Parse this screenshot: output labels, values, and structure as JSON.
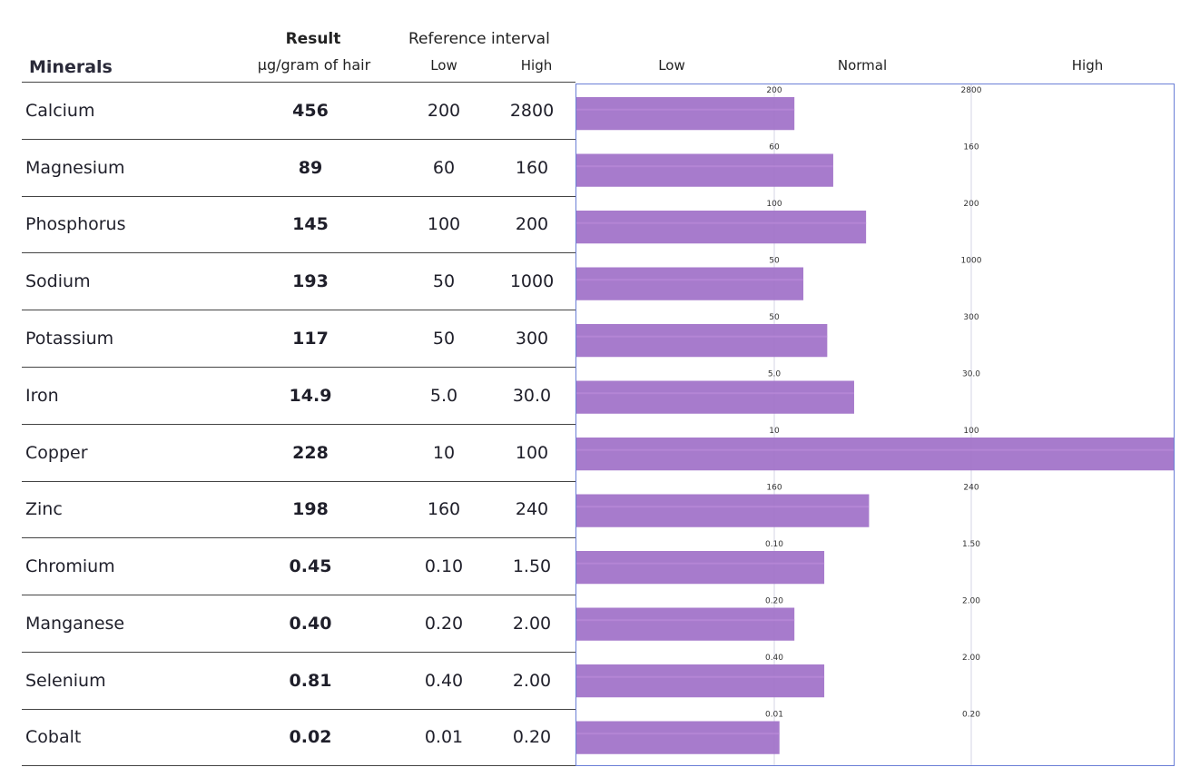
{
  "header": {
    "minerals": "Minerals",
    "result": "Result",
    "unit": "µg/gram of hair",
    "reference_interval": "Reference interval",
    "low": "Low",
    "high": "High",
    "zone_low": "Low",
    "zone_normal": "Normal",
    "zone_high": "High"
  },
  "rows": [
    {
      "mineral": "Calcium",
      "result": "456",
      "low": "200",
      "high": "2800"
    },
    {
      "mineral": "Magnesium",
      "result": "89",
      "low": "60",
      "high": "160"
    },
    {
      "mineral": "Phosphorus",
      "result": "145",
      "low": "100",
      "high": "200"
    },
    {
      "mineral": "Sodium",
      "result": "193",
      "low": "50",
      "high": "1000"
    },
    {
      "mineral": "Potassium",
      "result": "117",
      "low": "50",
      "high": "300"
    },
    {
      "mineral": "Iron",
      "result": "14.9",
      "low": "5.0",
      "high": "30.0"
    },
    {
      "mineral": "Copper",
      "result": "228",
      "low": "10",
      "high": "100"
    },
    {
      "mineral": "Zinc",
      "result": "198",
      "low": "160",
      "high": "240"
    },
    {
      "mineral": "Chromium",
      "result": "0.45",
      "low": "0.10",
      "high": "1.50"
    },
    {
      "mineral": "Manganese",
      "result": "0.40",
      "low": "0.20",
      "high": "2.00"
    },
    {
      "mineral": "Selenium",
      "result": "0.81",
      "low": "0.40",
      "high": "2.00"
    },
    {
      "mineral": "Cobalt",
      "result": "0.02",
      "low": "0.01",
      "high": "0.20"
    }
  ],
  "chart_data": {
    "type": "bar",
    "orientation": "horizontal",
    "categories": [
      "Calcium",
      "Magnesium",
      "Phosphorus",
      "Sodium",
      "Potassium",
      "Iron",
      "Copper",
      "Zinc",
      "Chromium",
      "Manganese",
      "Selenium",
      "Cobalt"
    ],
    "series": [
      {
        "values": [
          456,
          89,
          145,
          193,
          117,
          14.9,
          228,
          198,
          0.45,
          0.4,
          0.81,
          0.02
        ]
      }
    ],
    "ref_low": [
      200,
      60,
      100,
      50,
      50,
      5.0,
      10,
      160,
      0.1,
      0.2,
      0.4,
      0.01
    ],
    "ref_high": [
      2800,
      160,
      200,
      1000,
      300,
      30.0,
      100,
      240,
      1.5,
      2.0,
      2.0,
      0.2
    ],
    "ref_low_labels": [
      "200",
      "60",
      "100",
      "50",
      "50",
      "5.0",
      "10",
      "160",
      "0.10",
      "0.20",
      "0.40",
      "0.01"
    ],
    "ref_high_labels": [
      "2800",
      "160",
      "200",
      "1000",
      "300",
      "30.0",
      "100",
      "240",
      "1.50",
      "2.00",
      "2.00",
      "0.20"
    ],
    "bar_level": [
      0.365,
      0.43,
      0.485,
      0.38,
      0.42,
      0.465,
      1.0,
      0.49,
      0.415,
      0.365,
      0.415,
      0.34
    ],
    "zones": [
      "Low",
      "Normal",
      "High"
    ],
    "grid": true,
    "bar_color": "#a070c8",
    "border_color": "#6b7fd6"
  }
}
